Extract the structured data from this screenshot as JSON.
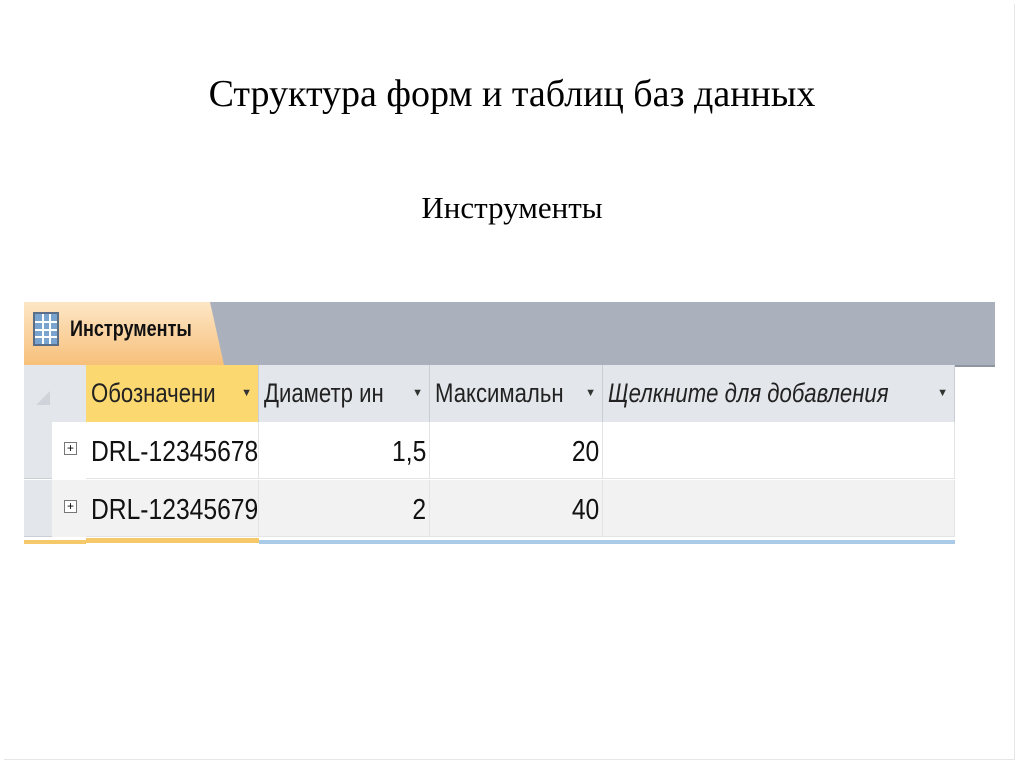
{
  "slide": {
    "title": "Структура форм и таблиц баз данных",
    "subtitle": "Инструменты"
  },
  "access_table": {
    "tab_label": "Инструменты",
    "tab_icon": "table-icon",
    "columns": [
      {
        "label": "Обозначени",
        "selected": true
      },
      {
        "label": "Диаметр ин"
      },
      {
        "label": "Максимальн"
      },
      {
        "label": "Щелкните для добавления"
      }
    ],
    "dropdown_glyph": "▼",
    "expand_glyph": "+",
    "rows": [
      {
        "cells": [
          "DRL-12345678",
          "1,5",
          "20",
          ""
        ]
      },
      {
        "cells": [
          "DRL-12345679",
          "2",
          "40",
          ""
        ]
      }
    ],
    "colors": {
      "tab_strip": "#aab1bc",
      "tab": "#f7c07a",
      "selected_header": "#fbd870",
      "header": "#e3e6ea"
    }
  }
}
